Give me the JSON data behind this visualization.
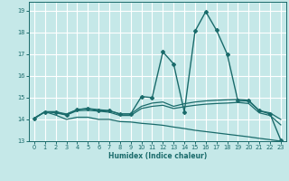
{
  "xlabel": "Humidex (Indice chaleur)",
  "ylabel": "",
  "background_color": "#c5e8e8",
  "grid_color": "#ffffff",
  "line_color": "#1a6b6b",
  "xlim": [
    -0.5,
    23.5
  ],
  "ylim": [
    13,
    19.4
  ],
  "xticks": [
    0,
    1,
    2,
    3,
    4,
    5,
    6,
    7,
    8,
    9,
    10,
    11,
    12,
    13,
    14,
    15,
    16,
    17,
    18,
    19,
    20,
    21,
    22,
    23
  ],
  "yticks": [
    13,
    14,
    15,
    16,
    17,
    18,
    19
  ],
  "series": [
    {
      "x": [
        0,
        1,
        2,
        3,
        4,
        5,
        6,
        7,
        8,
        9,
        10,
        11,
        12,
        13,
        14,
        15,
        16,
        17,
        18,
        19,
        20,
        21,
        22,
        23
      ],
      "y": [
        14.05,
        14.35,
        14.35,
        14.2,
        14.45,
        14.5,
        14.4,
        14.4,
        14.25,
        14.25,
        15.05,
        15.0,
        17.1,
        16.55,
        14.35,
        18.05,
        18.95,
        18.1,
        17.0,
        14.85,
        14.85,
        14.4,
        14.25,
        13.05
      ],
      "marker": "D",
      "markersize": 2.0,
      "linewidth": 1.0
    },
    {
      "x": [
        0,
        1,
        2,
        3,
        4,
        5,
        6,
        7,
        8,
        9,
        10,
        11,
        12,
        13,
        14,
        15,
        16,
        17,
        18,
        19,
        20,
        21,
        22,
        23
      ],
      "y": [
        14.05,
        14.35,
        14.35,
        14.25,
        14.45,
        14.5,
        14.45,
        14.4,
        14.25,
        14.25,
        14.6,
        14.75,
        14.8,
        14.6,
        14.72,
        14.8,
        14.85,
        14.88,
        14.9,
        14.92,
        14.88,
        14.4,
        14.3,
        14.0
      ],
      "marker": null,
      "markersize": 0,
      "linewidth": 0.9
    },
    {
      "x": [
        0,
        1,
        2,
        3,
        4,
        5,
        6,
        7,
        8,
        9,
        10,
        11,
        12,
        13,
        14,
        15,
        16,
        17,
        18,
        19,
        20,
        21,
        22,
        23
      ],
      "y": [
        14.05,
        14.35,
        14.3,
        14.2,
        14.4,
        14.42,
        14.38,
        14.33,
        14.18,
        14.18,
        14.5,
        14.6,
        14.65,
        14.5,
        14.58,
        14.65,
        14.7,
        14.73,
        14.75,
        14.78,
        14.73,
        14.3,
        14.18,
        13.75
      ],
      "marker": null,
      "markersize": 0,
      "linewidth": 0.9
    },
    {
      "x": [
        0,
        1,
        2,
        3,
        4,
        5,
        6,
        7,
        8,
        9,
        10,
        11,
        12,
        13,
        14,
        15,
        16,
        17,
        18,
        19,
        20,
        21,
        22,
        23
      ],
      "y": [
        14.05,
        14.35,
        14.2,
        14.0,
        14.1,
        14.1,
        14.0,
        14.0,
        13.9,
        13.88,
        13.82,
        13.78,
        13.73,
        13.65,
        13.58,
        13.5,
        13.44,
        13.38,
        13.32,
        13.26,
        13.2,
        13.13,
        13.07,
        13.0
      ],
      "marker": null,
      "markersize": 0,
      "linewidth": 0.9
    }
  ]
}
